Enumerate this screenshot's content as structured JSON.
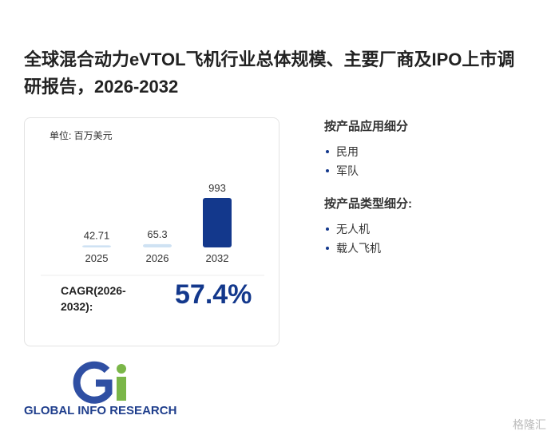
{
  "header": {
    "title": "全球混合动力eVTOL飞机行业总体规模、主要厂商及IPO上市调研报告，2026-2032"
  },
  "chart_data": {
    "type": "bar",
    "unit": "单位: 百万美元",
    "categories": [
      "2025",
      "2026",
      "2032"
    ],
    "values": [
      42.71,
      65.3,
      993
    ],
    "colors": [
      "#cfe2f3",
      "#cfe2f3",
      "#13388c"
    ]
  },
  "cagr": {
    "label": "CAGR(2026-2032):",
    "value": "57.4%"
  },
  "segments": [
    {
      "heading": "按产品应用细分",
      "items": [
        "民用",
        "军队"
      ]
    },
    {
      "heading": "按产品类型细分:",
      "items": [
        "无人机",
        "载人飞机"
      ]
    }
  ],
  "logo": {
    "text": "GLOBAL INFO RESEARCH"
  },
  "watermark": {
    "text": "格隆汇"
  }
}
